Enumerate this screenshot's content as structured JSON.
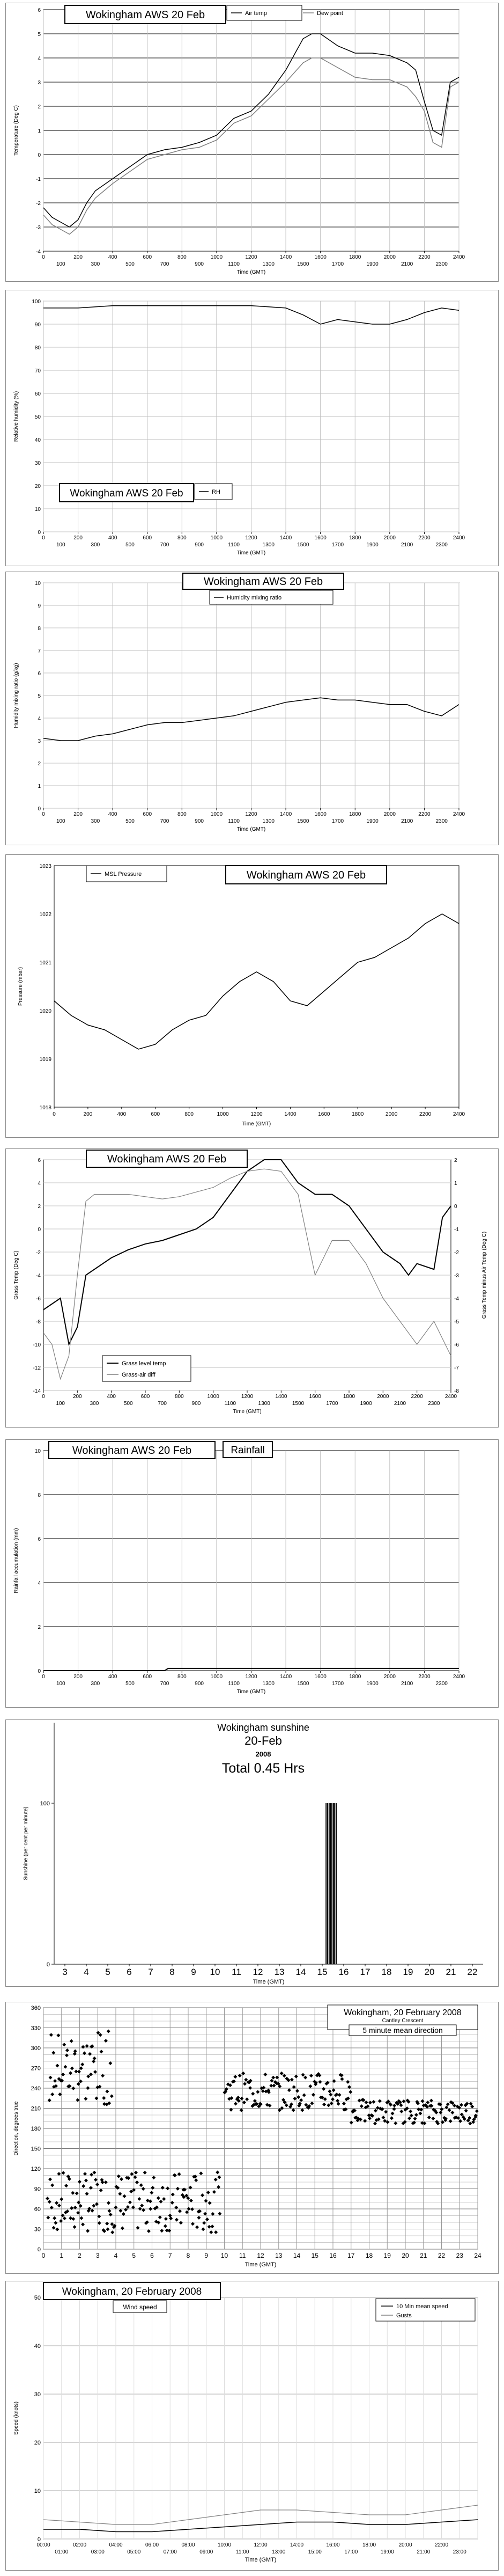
{
  "chart_data": [
    {
      "type": "line",
      "title": "Wokingham AWS 20 Feb",
      "xlabel": "Time (GMT)",
      "ylabel": "Temperature (Deg C)",
      "xlim": [
        0,
        2400
      ],
      "ylim": [
        -4,
        6
      ],
      "yticks": [
        -4,
        -3,
        -2,
        -1,
        0,
        1,
        2,
        3,
        4,
        5,
        6
      ],
      "xticks_top": [
        "0",
        "200",
        "400",
        "600",
        "800",
        "1000",
        "1200",
        "1400",
        "1600",
        "1800",
        "2000",
        "2200",
        "2400"
      ],
      "xticks_bottom": [
        "100",
        "300",
        "500",
        "700",
        "900",
        "1100",
        "1300",
        "1500",
        "1700",
        "1900",
        "2100",
        "2300"
      ],
      "series": [
        {
          "name": "Air temp",
          "color": "#000000",
          "x": [
            0,
            50,
            100,
            150,
            200,
            250,
            300,
            400,
            500,
            600,
            700,
            800,
            900,
            1000,
            1100,
            1200,
            1300,
            1400,
            1500,
            1550,
            1600,
            1700,
            1800,
            1900,
            2000,
            2100,
            2150,
            2200,
            2250,
            2300,
            2350,
            2400
          ],
          "y": [
            -2.2,
            -2.6,
            -2.8,
            -3.0,
            -2.7,
            -2.0,
            -1.5,
            -1.0,
            -0.5,
            0.0,
            0.2,
            0.3,
            0.5,
            0.8,
            1.5,
            1.8,
            2.5,
            3.5,
            4.8,
            5.0,
            5.0,
            4.5,
            4.2,
            4.2,
            4.1,
            3.8,
            3.5,
            2.2,
            1.0,
            0.8,
            3.0,
            3.2
          ]
        },
        {
          "name": "Dew point",
          "color": "#808080",
          "x": [
            0,
            50,
            100,
            150,
            200,
            250,
            300,
            400,
            500,
            600,
            700,
            800,
            900,
            1000,
            1100,
            1200,
            1300,
            1400,
            1500,
            1550,
            1600,
            1700,
            1800,
            1900,
            2000,
            2100,
            2150,
            2200,
            2250,
            2300,
            2350,
            2400
          ],
          "y": [
            -2.5,
            -2.9,
            -3.1,
            -3.3,
            -3.0,
            -2.3,
            -1.8,
            -1.2,
            -0.7,
            -0.2,
            0.0,
            0.2,
            0.3,
            0.6,
            1.3,
            1.6,
            2.3,
            3.0,
            3.8,
            4.0,
            4.0,
            3.6,
            3.2,
            3.1,
            3.1,
            2.8,
            2.4,
            1.8,
            0.5,
            0.3,
            2.8,
            3.0
          ]
        }
      ]
    },
    {
      "type": "line",
      "title": "Wokingham AWS 20 Feb",
      "xlabel": "Time (GMT)",
      "ylabel": "Relative humidity (%)",
      "xlim": [
        0,
        2400
      ],
      "ylim": [
        0,
        100
      ],
      "yticks": [
        0,
        10,
        20,
        30,
        40,
        50,
        60,
        70,
        80,
        90,
        100
      ],
      "xticks_top": [
        "0",
        "200",
        "400",
        "600",
        "800",
        "1000",
        "1200",
        "1400",
        "1600",
        "1800",
        "2000",
        "2200",
        "2400"
      ],
      "xticks_bottom": [
        "100",
        "300",
        "500",
        "700",
        "900",
        "1100",
        "1300",
        "1500",
        "1700",
        "1900",
        "2100",
        "2300"
      ],
      "series": [
        {
          "name": "RH",
          "color": "#000000",
          "x": [
            0,
            200,
            400,
            600,
            800,
            1000,
            1200,
            1400,
            1500,
            1600,
            1700,
            1800,
            1900,
            2000,
            2100,
            2200,
            2300,
            2400
          ],
          "y": [
            97,
            97,
            98,
            98,
            98,
            98,
            98,
            97,
            94,
            90,
            92,
            91,
            90,
            90,
            92,
            95,
            97,
            96
          ]
        }
      ]
    },
    {
      "type": "line",
      "title": "Wokingham AWS 20 Feb",
      "xlabel": "Time (GMT)",
      "ylabel": "Humidity mixing ratio (g/kg)",
      "xlim": [
        0,
        2400
      ],
      "ylim": [
        0,
        10
      ],
      "yticks": [
        0,
        1,
        2,
        3,
        4,
        5,
        6,
        7,
        8,
        9,
        10
      ],
      "xticks_top": [
        "0",
        "200",
        "400",
        "600",
        "800",
        "1000",
        "1200",
        "1400",
        "1600",
        "1800",
        "2000",
        "2200",
        "2400"
      ],
      "xticks_bottom": [
        "100",
        "300",
        "500",
        "700",
        "900",
        "1100",
        "1300",
        "1500",
        "1700",
        "1900",
        "2100",
        "2300"
      ],
      "series": [
        {
          "name": "Humidity mixing ratio",
          "color": "#000000",
          "x": [
            0,
            100,
            200,
            300,
            400,
            500,
            600,
            700,
            800,
            900,
            1000,
            1100,
            1200,
            1300,
            1400,
            1500,
            1600,
            1700,
            1800,
            1900,
            2000,
            2100,
            2200,
            2300,
            2400
          ],
          "y": [
            3.1,
            3.0,
            3.0,
            3.2,
            3.3,
            3.5,
            3.7,
            3.8,
            3.8,
            3.9,
            4.0,
            4.1,
            4.3,
            4.5,
            4.7,
            4.8,
            4.9,
            4.8,
            4.8,
            4.7,
            4.6,
            4.6,
            4.3,
            4.1,
            4.6
          ]
        }
      ]
    },
    {
      "type": "line",
      "title": "Wokingham AWS 20 Feb",
      "xlabel": "Time (GMT)",
      "ylabel": "Pressure (mbar)",
      "xlim": [
        0,
        2400
      ],
      "ylim": [
        1018,
        1023
      ],
      "yticks": [
        1018,
        1019,
        1020,
        1021,
        1022,
        1023
      ],
      "xticks": [
        "0",
        "200",
        "400",
        "600",
        "800",
        "1000",
        "1200",
        "1400",
        "1600",
        "1800",
        "2000",
        "2200",
        "2400"
      ],
      "series": [
        {
          "name": "MSL Pressure",
          "color": "#000000",
          "x": [
            0,
            100,
            200,
            300,
            400,
            500,
            600,
            700,
            800,
            900,
            1000,
            1100,
            1200,
            1300,
            1400,
            1500,
            1600,
            1700,
            1800,
            1900,
            2000,
            2100,
            2200,
            2300,
            2400
          ],
          "y": [
            1020.2,
            1019.9,
            1019.7,
            1019.6,
            1019.4,
            1019.2,
            1019.3,
            1019.6,
            1019.8,
            1019.9,
            1020.3,
            1020.6,
            1020.8,
            1020.6,
            1020.2,
            1020.1,
            1020.4,
            1020.7,
            1021.0,
            1021.1,
            1021.3,
            1021.5,
            1021.8,
            1022.0,
            1021.8
          ]
        }
      ]
    },
    {
      "type": "line",
      "title": "Wokingham AWS 20 Feb",
      "xlabel": "Time (GMT)",
      "ylabel": "Grass Temp (Deg C)",
      "y2label": "Grass Temp minus Air Temp (Deg C)",
      "xlim": [
        0,
        2400
      ],
      "ylim": [
        -14,
        6
      ],
      "y2lim": [
        -8,
        2
      ],
      "yticks": [
        -14,
        -12,
        -10,
        -8,
        -6,
        -4,
        -2,
        0,
        2,
        4,
        6
      ],
      "y2ticks": [
        -8,
        -7,
        -6,
        -5,
        -4,
        -3,
        -2,
        -1,
        0,
        1,
        2
      ],
      "xticks_top": [
        "0",
        "200",
        "400",
        "600",
        "800",
        "1000",
        "1200",
        "1400",
        "1600",
        "1800",
        "2000",
        "2200",
        "2400"
      ],
      "xticks_bottom": [
        "100",
        "300",
        "500",
        "700",
        "900",
        "1100",
        "1300",
        "1500",
        "1700",
        "1900",
        "2100",
        "2300"
      ],
      "series": [
        {
          "name": "Grass level temp",
          "color": "#000000",
          "axis": "left",
          "x": [
            0,
            50,
            100,
            150,
            200,
            250,
            300,
            400,
            500,
            600,
            700,
            800,
            900,
            1000,
            1100,
            1200,
            1300,
            1400,
            1500,
            1600,
            1700,
            1800,
            1900,
            2000,
            2100,
            2150,
            2200,
            2300,
            2350,
            2400
          ],
          "y": [
            -7,
            -6.5,
            -6,
            -10,
            -8.5,
            -4,
            -3.5,
            -2.5,
            -1.8,
            -1.3,
            -1,
            -0.5,
            0,
            1,
            3,
            5,
            6,
            6,
            4,
            3,
            3,
            2,
            0,
            -2,
            -3,
            -4,
            -3,
            -3.5,
            1,
            2
          ]
        },
        {
          "name": "Grass-air diff",
          "color": "#808080",
          "axis": "right",
          "x": [
            0,
            50,
            100,
            150,
            200,
            250,
            300,
            400,
            500,
            600,
            700,
            800,
            900,
            1000,
            1100,
            1200,
            1300,
            1400,
            1500,
            1600,
            1700,
            1800,
            1900,
            2000,
            2100,
            2200,
            2300,
            2400
          ],
          "y": [
            -5.5,
            -6,
            -7.5,
            -6.5,
            -3,
            0.2,
            0.5,
            0.5,
            0.5,
            0.4,
            0.3,
            0.4,
            0.6,
            0.8,
            1.2,
            1.5,
            1.6,
            1.5,
            0.5,
            -3,
            -1.5,
            -1.5,
            -2.5,
            -4,
            -5,
            -6,
            -5,
            -6.5
          ]
        }
      ]
    },
    {
      "type": "line",
      "title": "Wokingham AWS 20 Feb",
      "subtitle": "Rainfall",
      "xlabel": "Time (GMT)",
      "ylabel": "Rainfall accumulation (mm)",
      "xlim": [
        0,
        2400
      ],
      "ylim": [
        0,
        10
      ],
      "yticks": [
        0,
        2,
        4,
        6,
        8,
        10
      ],
      "xticks_top": [
        "0",
        "200",
        "400",
        "600",
        "800",
        "1000",
        "1200",
        "1400",
        "1600",
        "1800",
        "2000",
        "2200",
        "2400"
      ],
      "xticks_bottom": [
        "100",
        "300",
        "500",
        "700",
        "900",
        "1100",
        "1300",
        "1500",
        "1700",
        "1900",
        "2100",
        "2300"
      ],
      "series": [
        {
          "name": "Rainfall",
          "color": "#000000",
          "x": [
            0,
            700,
            720,
            2400
          ],
          "y": [
            0,
            0,
            0.1,
            0.1
          ]
        }
      ]
    },
    {
      "type": "bar",
      "title": "Wokingham sunshine",
      "subtitle": "20-Feb",
      "year": "2008",
      "total_label": "Total 0.45 Hrs",
      "xlabel": "Time (GMT)",
      "ylabel": "Sunshine (per cent per minute)",
      "xlim": [
        2.5,
        22.5
      ],
      "ylim": [
        0,
        150
      ],
      "yticks": [
        0,
        100
      ],
      "xticks": [
        "3",
        "4",
        "5",
        "6",
        "7",
        "8",
        "9",
        "10",
        "11",
        "12",
        "13",
        "14",
        "15",
        "16",
        "17",
        "18",
        "19",
        "20",
        "21",
        "22"
      ],
      "bars_x": [
        15.18,
        15.25,
        15.32,
        15.38,
        15.45,
        15.52,
        15.58,
        15.65
      ],
      "bars_y": [
        100,
        100,
        100,
        100,
        100,
        100,
        100,
        100
      ]
    },
    {
      "type": "scatter",
      "title": "Wokingham,  20 February 2008",
      "subtitle": "Cantley Crescent",
      "legend_label": "5 minute mean direction",
      "xlabel": "Time (GMT)",
      "ylabel": "Direction, degrees true",
      "xlim": [
        0,
        24
      ],
      "ylim": [
        0,
        360
      ],
      "yticks": [
        0,
        30,
        60,
        90,
        120,
        150,
        180,
        210,
        240,
        270,
        300,
        330,
        360
      ],
      "xticks": [
        "0",
        "1",
        "2",
        "3",
        "4",
        "5",
        "6",
        "7",
        "8",
        "9",
        "10",
        "11",
        "12",
        "13",
        "14",
        "15",
        "16",
        "17",
        "18",
        "19",
        "20",
        "21",
        "22",
        "23",
        "24"
      ],
      "segments": [
        {
          "x0": 0.2,
          "x1": 9.8,
          "center": 70,
          "spread": 45
        },
        {
          "x0": 0.3,
          "x1": 3.8,
          "center": 270,
          "spread": 55
        },
        {
          "x0": 10.0,
          "x1": 17.0,
          "center": 235,
          "spread": 28
        },
        {
          "x0": 17.0,
          "x1": 24.0,
          "center": 205,
          "spread": 18
        }
      ]
    },
    {
      "type": "line",
      "title": "Wokingham,  20 February 2008",
      "legend_label": "Wind speed",
      "xlabel": "Time (GMT)",
      "ylabel": "Speed (knots)",
      "xlim": [
        0,
        24
      ],
      "ylim": [
        0,
        50
      ],
      "yticks": [
        0,
        10,
        20,
        30,
        40,
        50
      ],
      "xticks_top": [
        "00:00",
        "02:00",
        "04:00",
        "06:00",
        "08:00",
        "10:00",
        "12:00",
        "14:00",
        "16:00",
        "18:00",
        "20:00",
        "22:00"
      ],
      "xticks_bottom": [
        "01:00",
        "03:00",
        "05:00",
        "07:00",
        "09:00",
        "11:00",
        "13:00",
        "15:00",
        "17:00",
        "19:00",
        "21:00",
        "23:00"
      ],
      "series": [
        {
          "name": "10 Min mean speed",
          "color": "#000000",
          "x": [
            0,
            2,
            4,
            6,
            8,
            10,
            12,
            14,
            16,
            18,
            20,
            22,
            24
          ],
          "y": [
            2,
            2,
            1.5,
            1.5,
            2,
            2.5,
            3,
            3.5,
            3.5,
            3,
            3,
            3.5,
            4
          ]
        },
        {
          "name": "Gusts",
          "color": "#808080",
          "x": [
            0,
            2,
            4,
            6,
            8,
            10,
            12,
            14,
            16,
            18,
            20,
            22,
            24
          ],
          "y": [
            4,
            3.5,
            3,
            3,
            4,
            5,
            6,
            6,
            5.5,
            5,
            5,
            6,
            7
          ]
        }
      ]
    }
  ]
}
